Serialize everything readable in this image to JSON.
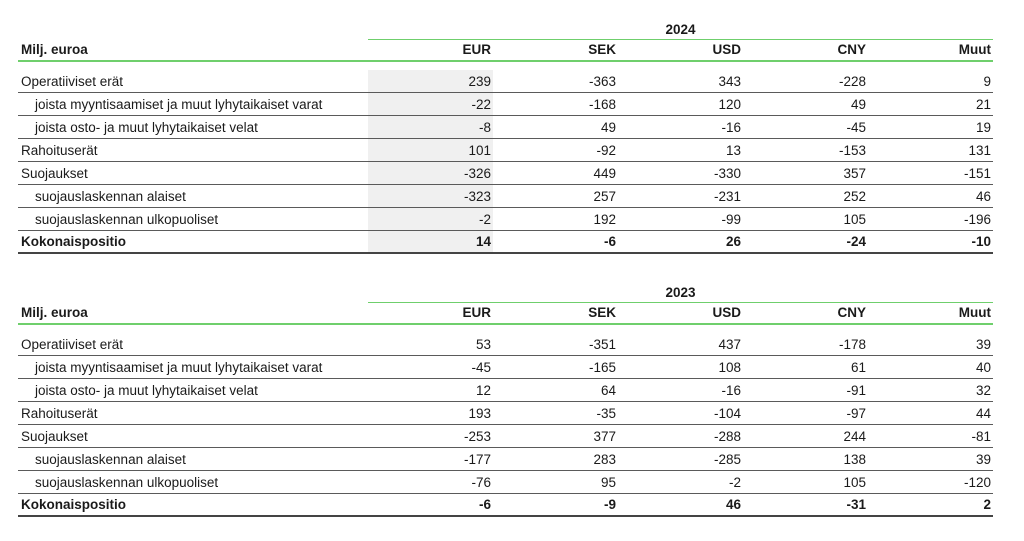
{
  "tables": [
    {
      "year": "2024",
      "unit_label": "Milj. euroa",
      "columns": [
        "EUR",
        "SEK",
        "USD",
        "CNY",
        "Muut"
      ],
      "rows": [
        {
          "label": "Operatiiviset erät",
          "indent": false,
          "total": false,
          "values": [
            "239",
            "-363",
            "343",
            "-228",
            "9"
          ]
        },
        {
          "label": "joista myyntisaamiset ja muut lyhytaikaiset varat",
          "indent": true,
          "total": false,
          "values": [
            "-22",
            "-168",
            "120",
            "49",
            "21"
          ]
        },
        {
          "label": "joista osto- ja muut lyhytaikaiset velat",
          "indent": true,
          "total": false,
          "values": [
            "-8",
            "49",
            "-16",
            "-45",
            "19"
          ]
        },
        {
          "label": "Rahoituserät",
          "indent": false,
          "total": false,
          "values": [
            "101",
            "-92",
            "13",
            "-153",
            "131"
          ]
        },
        {
          "label": "Suojaukset",
          "indent": false,
          "total": false,
          "values": [
            "-326",
            "449",
            "-330",
            "357",
            "-151"
          ]
        },
        {
          "label": "suojauslaskennan alaiset",
          "indent": true,
          "total": false,
          "values": [
            "-323",
            "257",
            "-231",
            "252",
            "46"
          ]
        },
        {
          "label": "suojauslaskennan ulkopuoliset",
          "indent": true,
          "total": false,
          "values": [
            "-2",
            "192",
            "-99",
            "105",
            "-196"
          ]
        },
        {
          "label": "Kokonaispositio",
          "indent": false,
          "total": true,
          "values": [
            "14",
            "-6",
            "26",
            "-24",
            "-10"
          ]
        }
      ]
    },
    {
      "year": "2023",
      "unit_label": "Milj. euroa",
      "columns": [
        "EUR",
        "SEK",
        "USD",
        "CNY",
        "Muut"
      ],
      "rows": [
        {
          "label": "Operatiiviset erät",
          "indent": false,
          "total": false,
          "values": [
            "53",
            "-351",
            "437",
            "-178",
            "39"
          ]
        },
        {
          "label": "joista myyntisaamiset ja muut lyhytaikaiset varat",
          "indent": true,
          "total": false,
          "values": [
            "-45",
            "-165",
            "108",
            "61",
            "40"
          ]
        },
        {
          "label": "joista osto- ja muut lyhytaikaiset velat",
          "indent": true,
          "total": false,
          "values": [
            "12",
            "64",
            "-16",
            "-91",
            "32"
          ]
        },
        {
          "label": "Rahoituserät",
          "indent": false,
          "total": false,
          "values": [
            "193",
            "-35",
            "-104",
            "-97",
            "44"
          ]
        },
        {
          "label": "Suojaukset",
          "indent": false,
          "total": false,
          "values": [
            "-253",
            "377",
            "-288",
            "244",
            "-81"
          ]
        },
        {
          "label": "suojauslaskennan alaiset",
          "indent": true,
          "total": false,
          "values": [
            "-177",
            "283",
            "-285",
            "138",
            "39"
          ]
        },
        {
          "label": "suojauslaskennan ulkopuoliset",
          "indent": true,
          "total": false,
          "values": [
            "-76",
            "95",
            "-2",
            "105",
            "-120"
          ]
        },
        {
          "label": "Kokonaispositio",
          "indent": false,
          "total": true,
          "values": [
            "-6",
            "-9",
            "46",
            "-31",
            "2"
          ]
        }
      ]
    }
  ]
}
